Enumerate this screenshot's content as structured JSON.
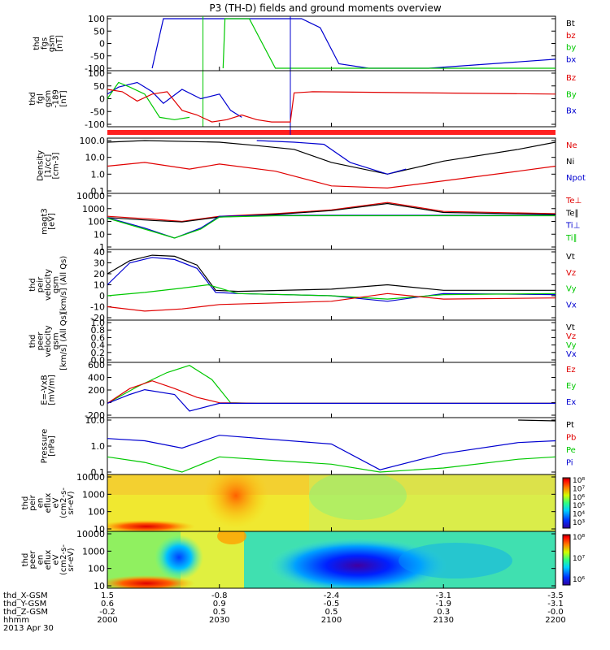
{
  "title": "P3 (TH-D) fields and ground moments overview",
  "colors": {
    "black": "#000000",
    "red": "#e00000",
    "green": "#00c800",
    "blue": "#0000d0"
  },
  "panels": [
    {
      "id": "fgs",
      "ylabel": [
        "thd",
        "fgs",
        "gsm",
        "[nT]"
      ],
      "ticks": [
        "100",
        "50",
        "0",
        "-50",
        "-100"
      ],
      "legend": [
        {
          "t": "Bt",
          "c": "black"
        },
        {
          "t": "bz",
          "c": "red"
        },
        {
          "t": "by",
          "c": "green"
        },
        {
          "t": "bx",
          "c": "blue"
        }
      ]
    },
    {
      "id": "fgl",
      "ylabel": [
        "thd",
        "fgl",
        "gsm",
        "-189",
        "[nT]"
      ],
      "ticks": [
        "100",
        "50",
        "0",
        "-50",
        "-100"
      ],
      "legend": [
        {
          "t": "Bz",
          "c": "red"
        },
        {
          "t": "By",
          "c": "green"
        },
        {
          "t": "Bx",
          "c": "blue"
        }
      ]
    },
    {
      "id": "density",
      "ylabel": [
        "Density",
        "[1/cc]",
        "[cm-3]"
      ],
      "ticks": [
        "100.0",
        "10.0",
        "1.0",
        "0.1"
      ],
      "legend": [
        {
          "t": "Ne",
          "c": "red"
        },
        {
          "t": "Ni",
          "c": "black"
        },
        {
          "t": "Npot",
          "c": "blue"
        }
      ]
    },
    {
      "id": "temp",
      "ylabel": [
        "magt3",
        "[eV]"
      ],
      "ticks": [
        "10000",
        "1000",
        "100",
        "10",
        "1"
      ],
      "legend": [
        {
          "t": "Te⊥",
          "c": "red"
        },
        {
          "t": "Te∥",
          "c": "black"
        },
        {
          "t": "Ti⊥",
          "c": "blue"
        },
        {
          "t": "Ti∥",
          "c": "green"
        }
      ]
    },
    {
      "id": "vion",
      "ylabel": [
        "thd",
        "peir",
        "velocity",
        "gsm",
        "[km/s] (All Qs)"
      ],
      "ticks": [
        "40",
        "30",
        "20",
        "10",
        "0",
        "-10",
        "-20"
      ],
      "legend": [
        {
          "t": "Vt",
          "c": "black"
        },
        {
          "t": "Vz",
          "c": "red"
        },
        {
          "t": "Vy",
          "c": "green"
        },
        {
          "t": "Vx",
          "c": "blue"
        }
      ]
    },
    {
      "id": "velec",
      "ylabel": [
        "thd",
        "peer",
        "velocity",
        "gsm",
        "[km/s] (All Qs)"
      ],
      "ticks": [
        "1.0",
        "0.8",
        "0.6",
        "0.4",
        "0.2",
        "0.0"
      ],
      "legend": [
        {
          "t": "Vt",
          "c": "black"
        },
        {
          "t": "Vz",
          "c": "red"
        },
        {
          "t": "Vy",
          "c": "green"
        },
        {
          "t": "Vx",
          "c": "blue"
        }
      ]
    },
    {
      "id": "efield",
      "ylabel": [
        "E=-VxB",
        "[mV/m]"
      ],
      "ticks": [
        "600",
        "400",
        "200",
        "0",
        "-200"
      ],
      "legend": [
        {
          "t": "Ez",
          "c": "red"
        },
        {
          "t": "Ey",
          "c": "green"
        },
        {
          "t": "Ex",
          "c": "blue"
        }
      ]
    },
    {
      "id": "pressure",
      "ylabel": [
        "Pressure",
        "[nPa]"
      ],
      "ticks": [
        "10.0",
        "1.0",
        "0.1"
      ],
      "legend": [
        {
          "t": "Pt",
          "c": "black"
        },
        {
          "t": "Pb",
          "c": "red"
        },
        {
          "t": "Pe",
          "c": "green"
        },
        {
          "t": "Pi",
          "c": "blue"
        }
      ]
    },
    {
      "id": "spec_i",
      "ylabel": [
        "thd",
        "peir",
        "en",
        "eflux",
        "eV",
        "(cm2-s-",
        "sr-eV)"
      ],
      "ticks": [
        "10000",
        "1000",
        "100",
        "10"
      ],
      "legend": [],
      "cbar": [
        "10⁸",
        "10⁷",
        "10⁶",
        "10⁵",
        "10⁴",
        "10³"
      ]
    },
    {
      "id": "spec_e",
      "ylabel": [
        "thd",
        "peer",
        "en",
        "eflux",
        "eV",
        "(cm2-s-",
        "sr-eV)"
      ],
      "ticks": [
        "10000",
        "1000",
        "100",
        "10"
      ],
      "legend": [],
      "cbar": [
        "10⁸",
        "10⁷",
        "10⁶"
      ]
    }
  ],
  "xaxis": {
    "row_labels": [
      "thd_X-GSM",
      "thd_Y-GSM",
      "thd_Z-GSM",
      "hhmm",
      "2013 Apr 30"
    ],
    "columns": [
      [
        "1.5",
        "0.6",
        "-0.2",
        "2000"
      ],
      [
        "-0.8",
        "0.9",
        "0.5",
        "2030"
      ],
      [
        "-2.4",
        "-0.5",
        "0.5",
        "2100"
      ],
      [
        "-3.1",
        "-1.9",
        "0.3",
        "2130"
      ],
      [
        "-3.5",
        "-3.1",
        "-0.0",
        "2200"
      ]
    ]
  },
  "chart_data": {
    "type": "line",
    "title": "P3 (TH-D) fields and ground moments overview",
    "x_label": "hhmm",
    "x_ticks": [
      "2000",
      "2030",
      "2100",
      "2130",
      "2200"
    ],
    "time_range_min": [
      0,
      120
    ],
    "panels": {
      "fgs": {
        "ylim": [
          -120,
          100
        ],
        "series": [
          {
            "name": "bx",
            "color": "blue",
            "x": [
              12,
              15,
              52,
              57,
              62,
              70,
              78,
              86,
              120
            ],
            "y": [
              -120,
              100,
              100,
              60,
              -100,
              -120,
              -120,
              -120,
              -80
            ]
          },
          {
            "name": "by",
            "color": "green",
            "x": [
              31,
              31.5,
              38,
              45,
              120
            ],
            "y": [
              -120,
              100,
              100,
              -120,
              -120
            ]
          }
        ]
      },
      "fgl": {
        "ylabel_series": [
          {
            "name": "Bx",
            "color": "blue",
            "x": [
              0,
              3,
              8,
              12,
              15,
              20,
              25,
              30,
              33,
              36
            ],
            "y": [
              10,
              40,
              60,
              20,
              -30,
              30,
              -10,
              10,
              -60,
              -90
            ]
          },
          {
            "name": "By",
            "color": "green",
            "x": [
              0,
              3,
              6,
              10,
              14,
              18,
              22
            ],
            "y": [
              -10,
              60,
              40,
              10,
              -90,
              -100,
              -90
            ]
          },
          {
            "name": "Bz",
            "color": "red",
            "x": [
              0,
              4,
              8,
              12,
              16,
              20,
              24,
              28,
              32,
              36,
              40,
              44,
              49,
              50,
              55,
              120
            ],
            "y": [
              30,
              20,
              -20,
              10,
              20,
              -60,
              -80,
              -110,
              -100,
              -80,
              -100,
              -110,
              -110,
              15,
              20,
              10
            ]
          }
        ]
      },
      "density": {
        "ylim_log": [
          0.1,
          100
        ],
        "series": [
          {
            "name": "Ne",
            "color": "red",
            "x": [
              0,
              10,
              22,
              30,
              45,
              60,
              75,
              90,
              110,
              120
            ],
            "y": [
              3,
              5,
              2,
              4,
              1.5,
              0.2,
              0.15,
              0.4,
              1.5,
              3
            ]
          },
          {
            "name": "Ni",
            "color": "black",
            "x": [
              0,
              10,
              30,
              40,
              50,
              60,
              75,
              90,
              110,
              120
            ],
            "y": [
              80,
              100,
              80,
              50,
              30,
              5,
              1,
              6,
              30,
              80
            ]
          },
          {
            "name": "Npot",
            "color": "blue",
            "x": [
              40,
              50,
              58,
              65,
              75,
              80
            ],
            "y": [
              100,
              80,
              60,
              5,
              1,
              2
            ]
          }
        ]
      },
      "temp": {
        "ylim_log": [
          1,
          10000
        ],
        "series": [
          {
            "name": "Te⊥",
            "color": "red",
            "x": [
              0,
              12,
              20,
              30,
              45,
              60,
              75,
              90,
              120
            ],
            "y": [
              250,
              150,
              100,
              250,
              400,
              800,
              3000,
              600,
              400
            ]
          },
          {
            "name": "Te∥",
            "color": "black",
            "x": [
              0,
              12,
              20,
              30,
              45,
              60,
              75,
              90,
              120
            ],
            "y": [
              200,
              120,
              90,
              220,
              350,
              700,
              2500,
              500,
              350
            ]
          },
          {
            "name": "Ti⊥",
            "color": "blue",
            "x": [
              0,
              10,
              18,
              25,
              30,
              45,
              60,
              120
            ],
            "y": [
              200,
              30,
              5,
              30,
              250,
              300,
              300,
              300
            ]
          },
          {
            "name": "Ti∥",
            "color": "green",
            "x": [
              0,
              10,
              18,
              25,
              30,
              45,
              60,
              120
            ],
            "y": [
              180,
              25,
              5,
              25,
              220,
              280,
              280,
              280
            ]
          }
        ]
      },
      "vion": {
        "ylim": [
          -20,
          40
        ],
        "series": [
          {
            "name": "Vt",
            "color": "black",
            "x": [
              0,
              6,
              12,
              18,
              24,
              29,
              35,
              60,
              75,
              90,
              120
            ],
            "y": [
              20,
              32,
              37,
              36,
              28,
              5,
              4,
              6,
              10,
              5,
              5
            ]
          },
          {
            "name": "Vx",
            "color": "blue",
            "x": [
              0,
              6,
              12,
              18,
              24,
              29,
              35,
              60,
              75,
              90,
              120
            ],
            "y": [
              10,
              30,
              35,
              33,
              25,
              3,
              2,
              0,
              -5,
              2,
              1
            ]
          },
          {
            "name": "Vy",
            "color": "green",
            "x": [
              0,
              10,
              20,
              27,
              35,
              60,
              75,
              90,
              120
            ],
            "y": [
              0,
              3,
              7,
              10,
              2,
              0,
              -3,
              1,
              2
            ]
          },
          {
            "name": "Vz",
            "color": "red",
            "x": [
              0,
              10,
              20,
              30,
              60,
              75,
              90,
              120
            ],
            "y": [
              -10,
              -14,
              -12,
              -8,
              -5,
              2,
              -3,
              -2
            ]
          }
        ]
      },
      "velec": {
        "ylim": [
          0,
          1
        ],
        "series": []
      },
      "efield": {
        "ylim": [
          -200,
          650
        ],
        "series": [
          {
            "name": "Ey",
            "color": "green",
            "x": [
              0,
              8,
              16,
              22,
              28,
              33,
              40,
              120
            ],
            "y": [
              0,
              280,
              520,
              640,
              400,
              10,
              0,
              0
            ]
          },
          {
            "name": "Ez",
            "color": "red",
            "x": [
              0,
              6,
              12,
              18,
              24,
              30,
              40,
              120
            ],
            "y": [
              0,
              250,
              380,
              250,
              100,
              10,
              0,
              0
            ]
          },
          {
            "name": "Ex",
            "color": "blue",
            "x": [
              0,
              6,
              10,
              18,
              22,
              30,
              40,
              120
            ],
            "y": [
              0,
              150,
              230,
              150,
              -130,
              0,
              0,
              0
            ]
          }
        ]
      },
      "pressure": {
        "ylim_log": [
          0.03,
          20
        ],
        "series": [
          {
            "name": "Pi",
            "color": "blue",
            "x": [
              0,
              10,
              20,
              30,
              60,
              73,
              90,
              110,
              120
            ],
            "y": [
              2,
              1.5,
              0.6,
              3,
              1,
              0.04,
              0.3,
              1.2,
              1.5
            ]
          },
          {
            "name": "Pe",
            "color": "green",
            "x": [
              0,
              10,
              20,
              30,
              60,
              73,
              90,
              110,
              120
            ],
            "y": [
              0.2,
              0.1,
              0.03,
              0.2,
              0.08,
              0.03,
              0.05,
              0.15,
              0.2
            ]
          },
          {
            "name": "Pt",
            "color": "black",
            "x": [
              110,
              120
            ],
            "y": [
              20,
              18
            ]
          }
        ]
      },
      "spec_i": {
        "type": "heatmap",
        "colorbar": "10^3 – 10^8",
        "ylim_log": [
          10,
          10000
        ]
      },
      "spec_e": {
        "type": "heatmap",
        "colorbar": "10^6 – 10^8",
        "ylim_log": [
          10,
          10000
        ]
      }
    }
  }
}
